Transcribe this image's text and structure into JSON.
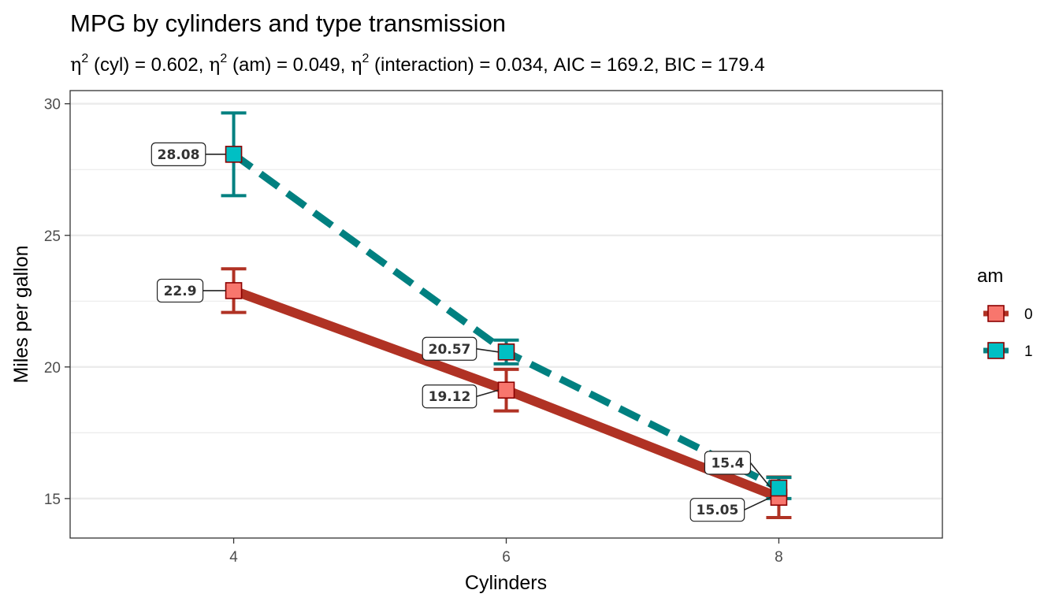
{
  "chart_data": {
    "type": "line",
    "title": "MPG by cylinders and type transmission",
    "subtitle": {
      "eta_symbol": "η",
      "superscript": "2",
      "cyl": " (cyl) = 0.602, ",
      "am": " (am) = 0.049, ",
      "interaction": " (interaction) = 0.034, AIC = 169.2, BIC = 179.4"
    },
    "xlabel": "Cylinders",
    "ylabel": "Miles per gallon",
    "xlim": [
      2.8,
      9.2
    ],
    "ylim": [
      13.5,
      30.5
    ],
    "x_ticks": [
      4,
      6,
      8
    ],
    "x_tick_labels": [
      "4",
      "6",
      "8"
    ],
    "y_ticks": [
      15,
      20,
      25,
      30
    ],
    "y_tick_labels": [
      "15",
      "20",
      "25",
      "30"
    ],
    "y_minor_grid": [
      17.5,
      22.5,
      27.5
    ],
    "grid": true,
    "legend": {
      "title": "am",
      "position": "right"
    },
    "series": [
      {
        "name": "0",
        "color": "#B03224",
        "fill": "#F8766D",
        "border": "#8B0000",
        "line_style": "solid",
        "points": [
          {
            "x": 4,
            "y": 22.9,
            "lo": 22.07,
            "hi": 23.73,
            "label": "22.9"
          },
          {
            "x": 6,
            "y": 19.12,
            "lo": 18.33,
            "hi": 19.91,
            "label": "19.12"
          },
          {
            "x": 8,
            "y": 15.05,
            "lo": 14.28,
            "hi": 15.82,
            "label": "15.05"
          }
        ]
      },
      {
        "name": "1",
        "color": "#008080",
        "fill": "#00BFC4",
        "border": "#8B0000",
        "line_style": "dashed",
        "points": [
          {
            "x": 4,
            "y": 28.08,
            "lo": 26.51,
            "hi": 29.65,
            "label": "28.08"
          },
          {
            "x": 6,
            "y": 20.57,
            "lo": 20.12,
            "hi": 21.02,
            "label": "20.57"
          },
          {
            "x": 8,
            "y": 15.4,
            "lo": 15.0,
            "hi": 15.8,
            "label": "15.4"
          }
        ]
      }
    ]
  }
}
